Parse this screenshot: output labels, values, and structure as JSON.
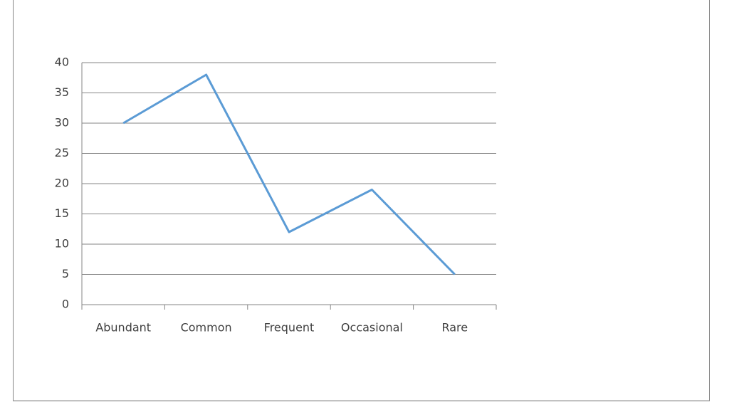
{
  "chart_data": {
    "type": "line",
    "categories": [
      "Abundant",
      "Common",
      "Frequent",
      "Occasional",
      "Rare"
    ],
    "values": [
      30,
      38,
      12,
      19,
      5
    ],
    "color": "#5b9bd5",
    "ylim": [
      0,
      40
    ],
    "yticks": [
      0,
      5,
      10,
      15,
      20,
      25,
      30,
      35,
      40
    ],
    "grid": true
  }
}
